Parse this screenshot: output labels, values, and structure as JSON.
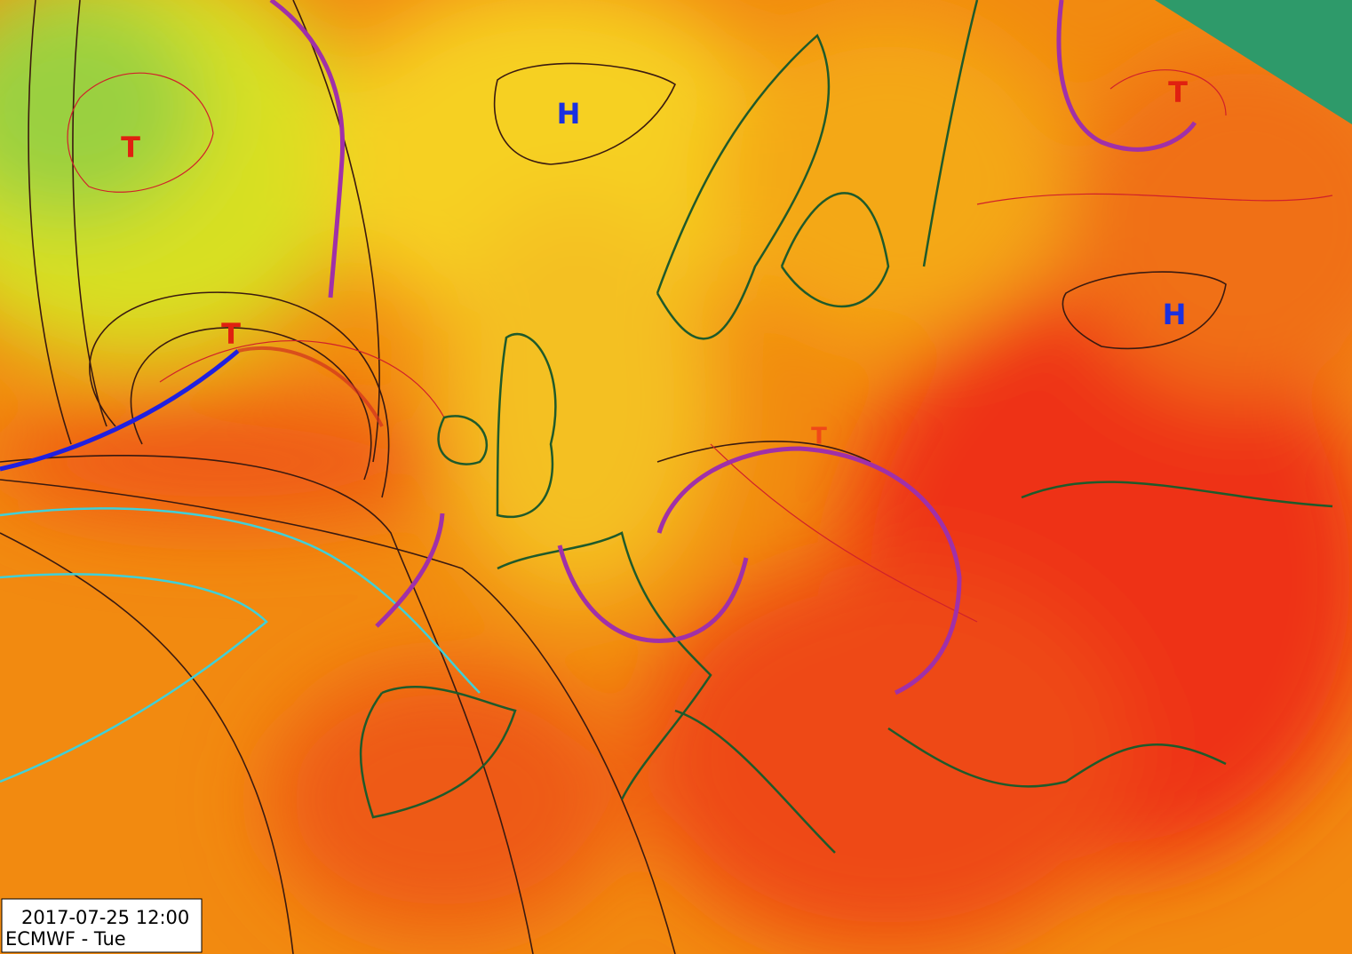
{
  "map": {
    "labels": [
      "T",
      "H",
      "T",
      "T",
      "H",
      "T"
    ]
  },
  "info": {
    "datetime": "2017-07-25 12:00",
    "model_day": "ECMWF - Tue"
  }
}
